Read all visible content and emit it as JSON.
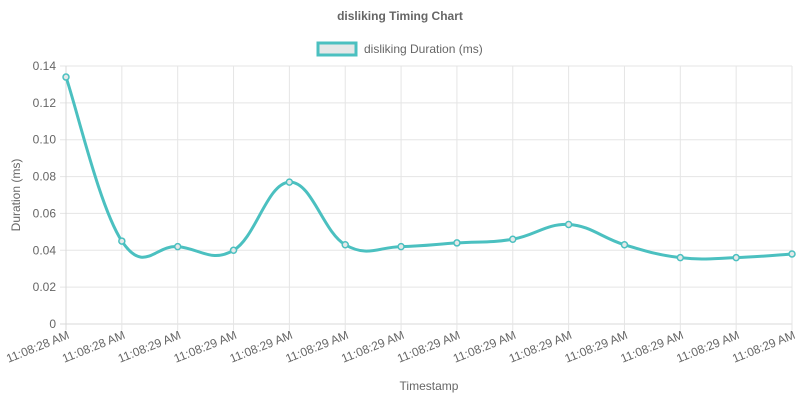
{
  "chart_data": {
    "type": "line",
    "title": "disliking Timing Chart",
    "xlabel": "Timestamp",
    "ylabel": "Duration (ms)",
    "ylim": [
      0,
      0.14
    ],
    "yticks": [
      "0",
      "0.02",
      "0.04",
      "0.06",
      "0.08",
      "0.10",
      "0.12",
      "0.14"
    ],
    "grid": true,
    "legend_position": "top",
    "categories": [
      "11:08:28 AM",
      "11:08:28 AM",
      "11:08:29 AM",
      "11:08:29 AM",
      "11:08:29 AM",
      "11:08:29 AM",
      "11:08:29 AM",
      "11:08:29 AM",
      "11:08:29 AM",
      "11:08:29 AM",
      "11:08:29 AM",
      "11:08:29 AM",
      "11:08:29 AM",
      "11:08:29 AM"
    ],
    "series": [
      {
        "name": "disliking Duration (ms)",
        "color": "#4bc0c0",
        "fill": "#e4e8e8",
        "values": [
          0.134,
          0.045,
          0.042,
          0.04,
          0.077,
          0.043,
          0.042,
          0.044,
          0.046,
          0.054,
          0.043,
          0.036,
          0.036,
          0.038
        ]
      }
    ]
  }
}
